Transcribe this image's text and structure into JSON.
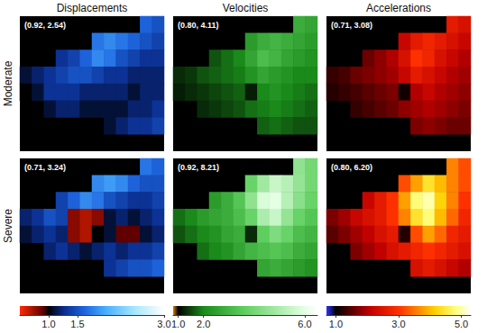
{
  "row_labels": [
    "Moderate",
    "Severe"
  ],
  "chart_data": [
    {
      "type": "heatmap",
      "title": "Displacements",
      "tick_labels": false,
      "panels": [
        {
          "annotation": "(0.92, 2.54)",
          "cells": [
            [
              null,
              null,
              null,
              null,
              null,
              null,
              null,
              null,
              null,
              null,
              1.6,
              1.5
            ],
            [
              null,
              null,
              null,
              null,
              null,
              null,
              1.7,
              1.8,
              1.7,
              1.6,
              1.5,
              1.4
            ],
            [
              null,
              null,
              null,
              1.3,
              1.4,
              1.6,
              1.8,
              1.7,
              1.5,
              1.4,
              1.3,
              1.3
            ],
            [
              1.1,
              1.2,
              1.3,
              1.4,
              1.5,
              1.5,
              1.4,
              1.3,
              1.3,
              1.2,
              1.2,
              1.2
            ],
            [
              1.0,
              1.1,
              1.3,
              1.3,
              1.3,
              1.2,
              1.2,
              1.2,
              1.2,
              1.1,
              1.2,
              1.2
            ],
            [
              null,
              null,
              1.1,
              1.2,
              1.2,
              1.1,
              1.1,
              1.1,
              1.1,
              1.2,
              1.2,
              1.3
            ],
            [
              null,
              null,
              null,
              null,
              null,
              null,
              null,
              1.1,
              1.2,
              1.3,
              1.3,
              1.4
            ],
            [
              null,
              null,
              null,
              null,
              null,
              null,
              null,
              null,
              null,
              null,
              null,
              null
            ]
          ]
        },
        {
          "annotation": "(0.71, 3.24)",
          "cells": [
            [
              null,
              null,
              null,
              null,
              null,
              null,
              null,
              null,
              null,
              null,
              1.7,
              1.6
            ],
            [
              null,
              null,
              null,
              null,
              null,
              null,
              1.8,
              1.9,
              1.8,
              1.6,
              1.5,
              1.5
            ],
            [
              null,
              null,
              null,
              1.4,
              1.6,
              1.8,
              1.7,
              1.5,
              1.4,
              1.3,
              1.3,
              1.4
            ],
            [
              1.2,
              1.3,
              1.5,
              1.4,
              0.8,
              0.7,
              0.8,
              1.1,
              1.2,
              1.1,
              1.2,
              1.3
            ],
            [
              1.1,
              1.2,
              1.3,
              1.2,
              0.8,
              0.7,
              1.0,
              1.1,
              0.9,
              0.9,
              1.1,
              1.2
            ],
            [
              null,
              null,
              1.2,
              1.3,
              1.2,
              1.1,
              1.2,
              1.3,
              1.2,
              1.3,
              1.3,
              1.4
            ],
            [
              null,
              null,
              null,
              null,
              null,
              null,
              null,
              1.3,
              1.4,
              1.5,
              1.5,
              1.6
            ],
            [
              null,
              null,
              null,
              null,
              null,
              null,
              null,
              null,
              null,
              null,
              null,
              null
            ]
          ]
        }
      ],
      "colorbar": {
        "range": [
          0.5,
          3.0
        ],
        "ticks": [
          {
            "value": 1.0,
            "label": "1.0"
          },
          {
            "value": 1.5,
            "label": "1.5"
          },
          {
            "value": 3.0,
            "label": "3.0"
          }
        ]
      }
    },
    {
      "type": "heatmap",
      "title": "Velocities",
      "tick_labels": false,
      "panels": [
        {
          "annotation": "(0.80, 4.11)",
          "cells": [
            [
              null,
              null,
              null,
              null,
              null,
              null,
              null,
              null,
              null,
              null,
              2.8,
              2.6
            ],
            [
              null,
              null,
              null,
              null,
              null,
              null,
              2.4,
              2.8,
              3.0,
              2.8,
              2.6,
              2.4
            ],
            [
              null,
              null,
              null,
              1.6,
              1.8,
              2.0,
              2.6,
              3.2,
              3.0,
              2.6,
              2.4,
              2.2
            ],
            [
              1.3,
              1.4,
              1.6,
              1.7,
              1.8,
              1.9,
              2.2,
              2.6,
              2.4,
              2.2,
              2.0,
              2.0
            ],
            [
              1.2,
              1.3,
              1.4,
              1.5,
              1.6,
              1.7,
              1.2,
              2.0,
              2.2,
              2.0,
              1.9,
              1.8
            ],
            [
              null,
              null,
              1.3,
              1.4,
              1.5,
              1.6,
              1.8,
              1.9,
              2.0,
              1.9,
              1.8,
              1.7
            ],
            [
              null,
              null,
              null,
              null,
              null,
              null,
              null,
              1.7,
              1.8,
              1.7,
              1.6,
              1.6
            ],
            [
              null,
              null,
              null,
              null,
              null,
              null,
              null,
              null,
              null,
              null,
              null,
              null
            ]
          ]
        },
        {
          "annotation": "(0.92, 8.21)",
          "cells": [
            [
              null,
              null,
              null,
              null,
              null,
              null,
              null,
              null,
              null,
              null,
              4.5,
              4.0
            ],
            [
              null,
              null,
              null,
              null,
              null,
              null,
              3.8,
              4.8,
              5.5,
              5.2,
              4.6,
              4.0
            ],
            [
              null,
              null,
              null,
              2.4,
              2.8,
              3.4,
              4.5,
              5.8,
              6.0,
              5.2,
              4.4,
              3.8
            ],
            [
              1.8,
              2.0,
              2.4,
              2.6,
              2.8,
              3.2,
              3.8,
              5.0,
              5.5,
              4.6,
              3.8,
              3.4
            ],
            [
              1.6,
              1.8,
              2.0,
              2.2,
              2.6,
              2.8,
              1.3,
              3.6,
              4.2,
              3.8,
              3.2,
              3.0
            ],
            [
              null,
              null,
              1.8,
              2.0,
              2.2,
              2.6,
              3.0,
              3.2,
              3.4,
              3.2,
              2.8,
              2.6
            ],
            [
              null,
              null,
              null,
              null,
              null,
              null,
              null,
              2.6,
              2.8,
              2.6,
              2.4,
              2.2
            ],
            [
              null,
              null,
              null,
              null,
              null,
              null,
              null,
              null,
              null,
              null,
              null,
              null
            ]
          ]
        }
      ],
      "colorbar": {
        "range": [
          0.8,
          6.5
        ],
        "ticks": [
          {
            "value": 1.0,
            "label": "1.0"
          },
          {
            "value": 2.0,
            "label": "2.0"
          },
          {
            "value": 6.0,
            "label": "6.0"
          }
        ]
      }
    },
    {
      "type": "heatmap",
      "title": "Accelerations",
      "tick_labels": false,
      "panels": [
        {
          "annotation": "(0.71, 3.08)",
          "cells": [
            [
              null,
              null,
              null,
              null,
              null,
              null,
              null,
              null,
              null,
              null,
              2.6,
              2.4
            ],
            [
              null,
              null,
              null,
              null,
              null,
              null,
              2.2,
              2.6,
              2.8,
              2.6,
              2.4,
              2.2
            ],
            [
              null,
              null,
              null,
              1.6,
              1.8,
              2.0,
              2.4,
              3.0,
              2.8,
              2.4,
              2.2,
              2.0
            ],
            [
              1.3,
              1.4,
              1.6,
              1.7,
              1.8,
              1.9,
              2.2,
              2.6,
              2.4,
              2.2,
              2.0,
              1.9
            ],
            [
              1.2,
              1.3,
              1.4,
              1.5,
              1.6,
              1.7,
              1.1,
              2.0,
              2.2,
              2.0,
              1.9,
              1.8
            ],
            [
              null,
              null,
              1.3,
              1.4,
              1.5,
              1.6,
              1.8,
              1.9,
              2.0,
              1.9,
              1.8,
              1.7
            ],
            [
              null,
              null,
              null,
              null,
              null,
              null,
              null,
              1.7,
              1.8,
              1.7,
              1.6,
              1.6
            ],
            [
              null,
              null,
              null,
              null,
              null,
              null,
              null,
              null,
              null,
              null,
              null,
              null
            ]
          ]
        },
        {
          "annotation": "(0.80, 6.20)",
          "cells": [
            [
              null,
              null,
              null,
              null,
              null,
              null,
              null,
              null,
              null,
              null,
              3.6,
              3.2
            ],
            [
              null,
              null,
              null,
              null,
              null,
              null,
              3.2,
              3.8,
              4.4,
              4.0,
              3.6,
              3.2
            ],
            [
              null,
              null,
              null,
              2.2,
              2.6,
              3.0,
              3.8,
              4.8,
              5.0,
              4.2,
              3.6,
              3.0
            ],
            [
              1.7,
              1.9,
              2.2,
              2.4,
              2.6,
              3.0,
              3.6,
              4.4,
              4.8,
              4.0,
              3.4,
              2.8
            ],
            [
              1.5,
              1.7,
              1.9,
              2.1,
              2.4,
              2.6,
              1.2,
              3.2,
              3.8,
              3.4,
              2.8,
              2.6
            ],
            [
              null,
              null,
              1.7,
              1.9,
              2.1,
              2.4,
              2.6,
              2.8,
              3.0,
              2.8,
              2.6,
              2.4
            ],
            [
              null,
              null,
              null,
              null,
              null,
              null,
              null,
              2.4,
              2.6,
              2.4,
              2.2,
              2.0
            ],
            [
              null,
              null,
              null,
              null,
              null,
              null,
              null,
              null,
              null,
              null,
              null,
              null
            ]
          ]
        }
      ],
      "colorbar": {
        "range": [
          0.7,
          5.3
        ],
        "ticks": [
          {
            "value": 1.0,
            "label": "1.0"
          },
          {
            "value": 3.0,
            "label": "3.0"
          },
          {
            "value": 5.0,
            "label": "5.0"
          }
        ]
      }
    }
  ]
}
